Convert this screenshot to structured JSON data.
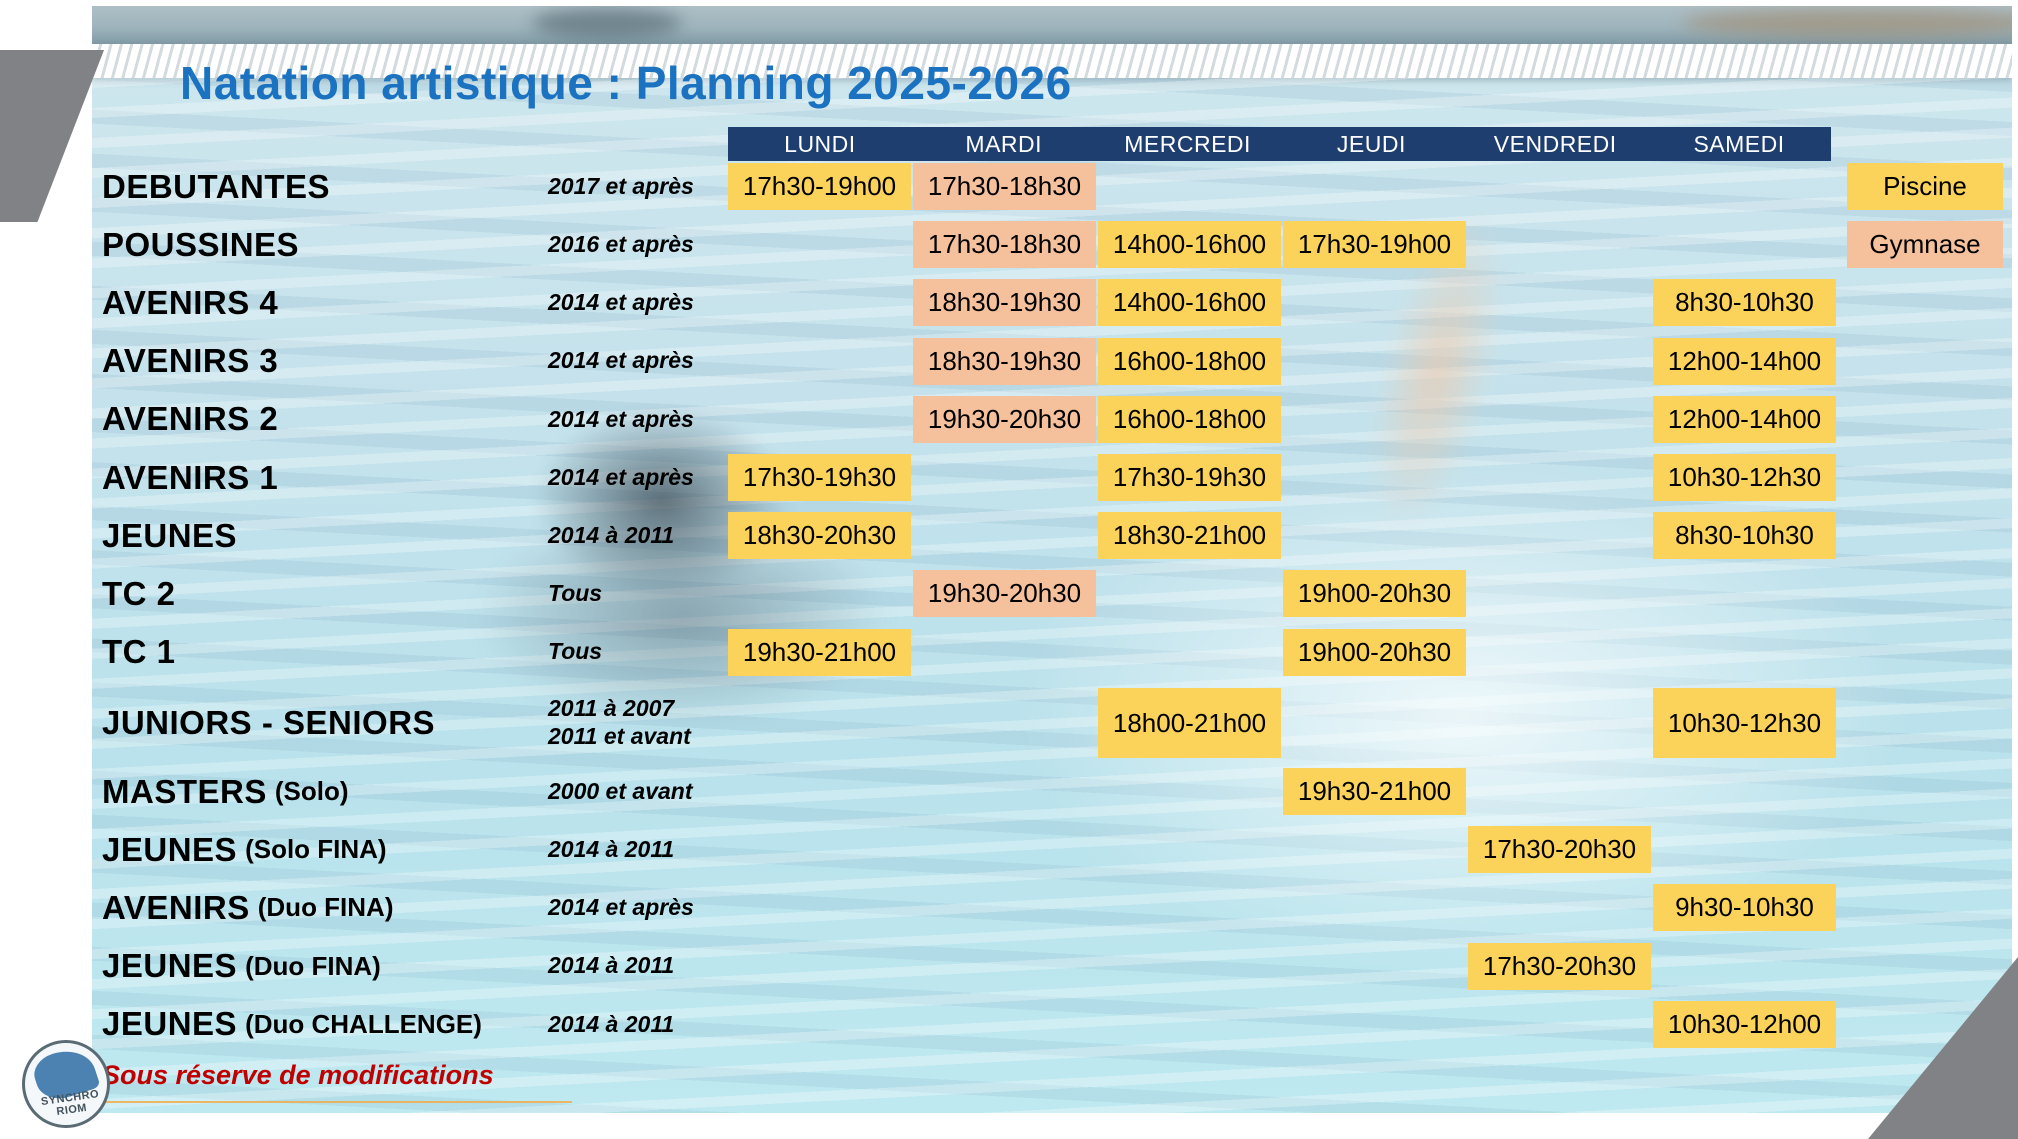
{
  "title": "Natation artistique : Planning 2025-2026",
  "days": [
    "LUNDI",
    "MARDI",
    "MERCREDI",
    "JEUDI",
    "VENDREDI",
    "SAMEDI"
  ],
  "legend": {
    "pool_label": "Piscine",
    "gym_label": "Gymnase"
  },
  "note": "Sous réserve de modifications",
  "logo_text": "SYNCHRO RIOM",
  "colors": {
    "pool_cell": "#FBD35B",
    "gym_cell": "#F5C09C",
    "header_bg": "#1F3E70",
    "title_text": "#1B72C0",
    "note_text": "#C00000",
    "corner_accent": "#808285"
  },
  "rows": [
    {
      "name": "DEBUTANTES",
      "sub": "",
      "age": "2017 et après",
      "tall": false,
      "slots": [
        {
          "day": "LUNDI",
          "time": "17h30-19h00",
          "loc": "pool"
        },
        {
          "day": "MARDI",
          "time": "17h30-18h30",
          "loc": "gym"
        }
      ]
    },
    {
      "name": "POUSSINES",
      "sub": "",
      "age": "2016 et après",
      "tall": false,
      "slots": [
        {
          "day": "MARDI",
          "time": "17h30-18h30",
          "loc": "gym"
        },
        {
          "day": "MERCREDI",
          "time": "14h00-16h00",
          "loc": "pool"
        },
        {
          "day": "JEUDI",
          "time": "17h30-19h00",
          "loc": "pool"
        }
      ]
    },
    {
      "name": "AVENIRS 4",
      "sub": "",
      "age": "2014 et après",
      "tall": false,
      "slots": [
        {
          "day": "MARDI",
          "time": "18h30-19h30",
          "loc": "gym"
        },
        {
          "day": "MERCREDI",
          "time": "14h00-16h00",
          "loc": "pool"
        },
        {
          "day": "SAMEDI",
          "time": "8h30-10h30",
          "loc": "pool"
        }
      ]
    },
    {
      "name": "AVENIRS 3",
      "sub": "",
      "age": "2014 et après",
      "tall": false,
      "slots": [
        {
          "day": "MARDI",
          "time": "18h30-19h30",
          "loc": "gym"
        },
        {
          "day": "MERCREDI",
          "time": "16h00-18h00",
          "loc": "pool"
        },
        {
          "day": "SAMEDI",
          "time": "12h00-14h00",
          "loc": "pool"
        }
      ]
    },
    {
      "name": "AVENIRS 2",
      "sub": "",
      "age": "2014 et après",
      "tall": false,
      "slots": [
        {
          "day": "MARDI",
          "time": "19h30-20h30",
          "loc": "gym"
        },
        {
          "day": "MERCREDI",
          "time": "16h00-18h00",
          "loc": "pool"
        },
        {
          "day": "SAMEDI",
          "time": "12h00-14h00",
          "loc": "pool"
        }
      ]
    },
    {
      "name": "AVENIRS 1",
      "sub": "",
      "age": "2014 et après",
      "tall": false,
      "slots": [
        {
          "day": "LUNDI",
          "time": "17h30-19h30",
          "loc": "pool"
        },
        {
          "day": "MERCREDI",
          "time": "17h30-19h30",
          "loc": "pool"
        },
        {
          "day": "SAMEDI",
          "time": "10h30-12h30",
          "loc": "pool"
        }
      ]
    },
    {
      "name": "JEUNES",
      "sub": "",
      "age": "2014 à 2011",
      "tall": false,
      "slots": [
        {
          "day": "LUNDI",
          "time": "18h30-20h30",
          "loc": "pool"
        },
        {
          "day": "MERCREDI",
          "time": "18h30-21h00",
          "loc": "pool"
        },
        {
          "day": "SAMEDI",
          "time": "8h30-10h30",
          "loc": "pool"
        }
      ]
    },
    {
      "name": "TC 2",
      "sub": "",
      "age": "Tous",
      "tall": false,
      "slots": [
        {
          "day": "MARDI",
          "time": "19h30-20h30",
          "loc": "gym"
        },
        {
          "day": "JEUDI",
          "time": "19h00-20h30",
          "loc": "pool"
        }
      ]
    },
    {
      "name": "TC 1",
      "sub": "",
      "age": "Tous",
      "tall": false,
      "slots": [
        {
          "day": "LUNDI",
          "time": "19h30-21h00",
          "loc": "pool"
        },
        {
          "day": "JEUDI",
          "time": "19h00-20h30",
          "loc": "pool"
        }
      ]
    },
    {
      "name": "JUNIORS - SENIORS",
      "sub": "",
      "age": "2011 à 2007\n2011 et avant",
      "tall": true,
      "slots": [
        {
          "day": "MERCREDI",
          "time": "18h00-21h00",
          "loc": "pool"
        },
        {
          "day": "SAMEDI",
          "time": "10h30-12h30",
          "loc": "pool"
        }
      ]
    },
    {
      "name": "MASTERS",
      "sub": "(Solo)",
      "age": "2000 et avant",
      "tall": false,
      "slots": [
        {
          "day": "JEUDI",
          "time": "19h30-21h00",
          "loc": "pool"
        }
      ]
    },
    {
      "name": "JEUNES",
      "sub": "(Solo FINA)",
      "age": "2014 à 2011",
      "tall": false,
      "slots": [
        {
          "day": "VENDREDI",
          "time": "17h30-20h30",
          "loc": "pool"
        }
      ]
    },
    {
      "name": "AVENIRS",
      "sub": "(Duo FINA)",
      "age": "2014 et après",
      "tall": false,
      "slots": [
        {
          "day": "SAMEDI",
          "time": "9h30-10h30",
          "loc": "pool"
        }
      ]
    },
    {
      "name": "JEUNES",
      "sub": "(Duo FINA)",
      "age": "2014 à 2011",
      "tall": false,
      "slots": [
        {
          "day": "VENDREDI",
          "time": "17h30-20h30",
          "loc": "pool"
        }
      ]
    },
    {
      "name": "JEUNES",
      "sub": "(Duo CHALLENGE)",
      "age": "2014 à 2011",
      "tall": false,
      "slots": [
        {
          "day": "SAMEDI",
          "time": "10h30-12h00",
          "loc": "pool"
        }
      ]
    }
  ]
}
